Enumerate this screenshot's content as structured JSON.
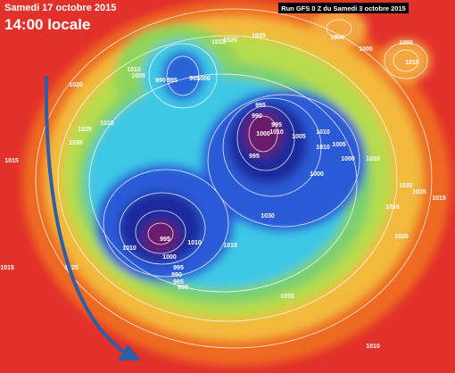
{
  "header": {
    "date": "Samedi 17 octobre 2015",
    "time": "14:00 locale",
    "run": "Run GFS 0 Z du Samedi 3 octobre 2015"
  },
  "isobar_labels": [
    "1020",
    "1025",
    "1015",
    "1010",
    "1005",
    "990",
    "985",
    "995",
    "1000",
    "1000",
    "1005",
    "1000",
    "1010",
    "1020",
    "1015",
    "1030",
    "1025",
    "995",
    "990",
    "1000",
    "1010",
    "995",
    "1005",
    "1010",
    "1010",
    "1030",
    "1010",
    "995",
    "1010",
    "1010",
    "1000",
    "995",
    "990",
    "985",
    "990",
    "1015",
    "1015",
    "1025",
    "1020",
    "1025",
    "1015",
    "1010",
    "1030",
    "1020",
    "1010",
    "1005",
    "1000",
    "1000",
    "995",
    "1010"
  ]
}
